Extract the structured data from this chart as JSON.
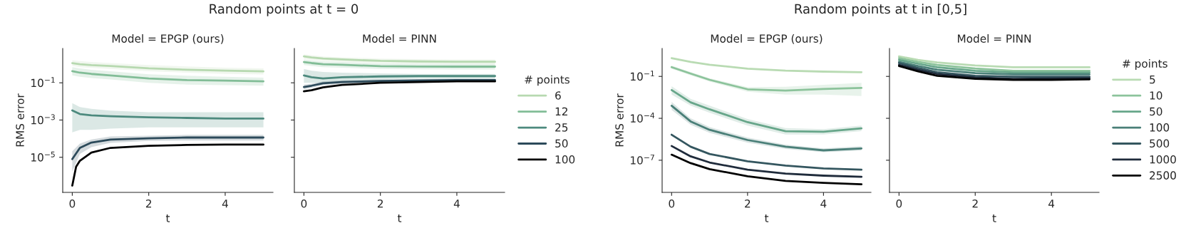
{
  "chart_data": [
    {
      "type": "line",
      "title": "Random points at t = 0",
      "subtitle": "Model = EPGP (ours)",
      "xlabel": "t",
      "ylabel": "RMS error",
      "log": "y",
      "grid": false,
      "legend": false,
      "xlim": [
        -0.25,
        5.25
      ],
      "xticks": [
        0,
        2,
        4
      ],
      "ylim": [
        1.3e-07,
        7
      ],
      "yticks": [
        {
          "value": 0.1,
          "label": "10$^{−1}$"
        },
        {
          "value": 0.001,
          "label": "10$^{−3}$"
        },
        {
          "value": 1e-05,
          "label": "10$^{−5}$"
        }
      ],
      "x": [
        0,
        0.2,
        0.5,
        1,
        2,
        3,
        4,
        5
      ],
      "series": [
        {
          "color": "#b7d9b0",
          "values": [
            1.14,
            1.0,
            0.9,
            0.8,
            0.6,
            0.5,
            0.45,
            0.41
          ],
          "lower": [
            0.8,
            0.7,
            0.63,
            0.56,
            0.42,
            0.35,
            0.3,
            0.28
          ],
          "upper": [
            1.65,
            1.45,
            1.3,
            1.15,
            0.9,
            0.75,
            0.65,
            0.6
          ]
        },
        {
          "color": "#82bd97",
          "values": [
            0.42,
            0.35,
            0.3,
            0.25,
            0.17,
            0.14,
            0.13,
            0.12
          ],
          "lower": [
            0.25,
            0.21,
            0.18,
            0.15,
            0.1,
            0.08,
            0.075,
            0.07
          ],
          "upper": [
            0.7,
            0.6,
            0.5,
            0.42,
            0.29,
            0.24,
            0.21,
            0.19
          ]
        },
        {
          "color": "#4d8a7e",
          "values": [
            0.0033,
            0.0021,
            0.0018,
            0.0016,
            0.0014,
            0.0013,
            0.0012,
            0.0012
          ],
          "lower": [
            0.00022,
            0.0003,
            0.0003,
            0.00035,
            0.0004,
            0.0004,
            0.0004,
            0.0004
          ],
          "upper": [
            0.008,
            0.005,
            0.004,
            0.0032,
            0.0026,
            0.0026,
            0.0026,
            0.0026
          ]
        },
        {
          "color": "#2c4a5a",
          "values": [
            8e-06,
            3.2e-05,
            6.2e-05,
            9e-05,
            0.000105,
            0.000115,
            0.000115,
            0.000115
          ],
          "lower": [
            1.7e-06,
            1.5e-05,
            3.5e-05,
            6e-05,
            7.5e-05,
            8e-05,
            8e-05,
            8e-05
          ],
          "upper": [
            2.1e-05,
            5.5e-05,
            9e-05,
            0.00013,
            0.000145,
            0.00016,
            0.00016,
            0.00016
          ]
        },
        {
          "color": "#000000",
          "x": [
            0,
            0.1,
            0.2,
            0.5,
            1,
            2,
            3,
            4,
            5
          ],
          "values": [
            3e-07,
            3.1e-06,
            6.5e-06,
            1.8e-05,
            3.2e-05,
            4.1e-05,
            4.6e-05,
            4.8e-05,
            4.8e-05
          ]
        }
      ]
    },
    {
      "type": "line",
      "subtitle": "Model = PINN",
      "xlabel": "t",
      "log": "y",
      "grid": false,
      "legend": "right",
      "legend_title": "# points",
      "tick_labels": "x",
      "xlim": [
        -0.25,
        5.25
      ],
      "xticks": [
        0,
        2,
        4
      ],
      "ylim": [
        1.3e-07,
        7
      ],
      "yticks": [
        {
          "value": 0.1,
          "label": null
        },
        {
          "value": 0.001,
          "label": null
        },
        {
          "value": 1e-05,
          "label": null
        }
      ],
      "x": [
        0,
        0.2,
        0.5,
        1,
        2,
        3,
        4,
        5
      ],
      "series": [
        {
          "name": "6",
          "color": "#b7d9b0",
          "values": [
            2.6,
            2.3,
            2.0,
            1.8,
            1.5,
            1.4,
            1.35,
            1.35
          ],
          "lower": [
            1.9,
            1.7,
            1.5,
            1.35,
            1.15,
            1.05,
            1.0,
            1.0
          ],
          "upper": [
            3.4,
            3.0,
            2.6,
            2.35,
            2.0,
            1.85,
            1.8,
            1.8
          ]
        },
        {
          "name": "12",
          "color": "#82bd97",
          "values": [
            1.3,
            1.15,
            1.0,
            0.93,
            0.78,
            0.75,
            0.74,
            0.74
          ],
          "lower": [
            0.9,
            0.8,
            0.7,
            0.65,
            0.55,
            0.53,
            0.52,
            0.52
          ],
          "upper": [
            1.8,
            1.6,
            1.4,
            1.3,
            1.1,
            1.05,
            1.05,
            1.05
          ]
        },
        {
          "name": "25",
          "color": "#4d8a7e",
          "values": [
            0.25,
            0.2,
            0.17,
            0.2,
            0.22,
            0.23,
            0.23,
            0.23
          ],
          "lower": [
            0.1,
            0.1,
            0.1,
            0.12,
            0.15,
            0.17,
            0.17,
            0.17
          ],
          "upper": [
            0.55,
            0.45,
            0.38,
            0.35,
            0.32,
            0.3,
            0.3,
            0.3
          ]
        },
        {
          "name": "50",
          "color": "#2c4a5a",
          "values": [
            0.06,
            0.07,
            0.095,
            0.11,
            0.125,
            0.135,
            0.14,
            0.14
          ],
          "lower": [
            0.045,
            0.055,
            0.075,
            0.09,
            0.105,
            0.115,
            0.12,
            0.12
          ],
          "upper": [
            0.08,
            0.09,
            0.12,
            0.135,
            0.15,
            0.16,
            0.165,
            0.165
          ]
        },
        {
          "name": "100",
          "color": "#000000",
          "values": [
            0.035,
            0.04,
            0.057,
            0.077,
            0.1,
            0.11,
            0.12,
            0.12
          ]
        }
      ]
    },
    {
      "type": "line",
      "title": "Random points at t in [0,5]",
      "subtitle": "Model = EPGP (ours)",
      "xlabel": "t",
      "ylabel": "RMS error",
      "log": "y",
      "grid": false,
      "legend": false,
      "xlim": [
        -0.25,
        5.25
      ],
      "xticks": [
        0,
        2,
        4
      ],
      "ylim": [
        5e-10,
        10
      ],
      "yticks": [
        {
          "value": 0.1,
          "label": "10$^{−1}$"
        },
        {
          "value": 0.0001,
          "label": "10$^{−4}$"
        },
        {
          "value": 1e-07,
          "label": "10$^{−7}$"
        }
      ],
      "x": [
        0,
        0.5,
        1,
        2,
        3,
        4,
        5
      ],
      "series": [
        {
          "color": "#b9dbb3",
          "values": [
            2.0,
            1.1,
            0.68,
            0.36,
            0.26,
            0.22,
            0.2
          ]
        },
        {
          "color": "#8cc39b",
          "values": [
            0.46,
            0.16,
            0.057,
            0.012,
            0.0096,
            0.0127,
            0.015
          ],
          "lower": [
            0.35,
            0.12,
            0.042,
            0.008,
            0.005,
            0.005,
            0.004
          ],
          "upper": [
            0.6,
            0.21,
            0.075,
            0.017,
            0.018,
            0.025,
            0.035
          ]
        },
        {
          "color": "#67a68a",
          "values": [
            0.0105,
            0.0014,
            0.00044,
            5.3e-05,
            1.2e-05,
            1.1e-05,
            1.9e-05
          ],
          "lower": [
            0.005,
            0.0008,
            0.00025,
            3e-05,
            7e-06,
            7e-06,
            1.2e-05
          ],
          "upper": [
            0.02,
            0.0025,
            0.0008,
            9e-05,
            2e-05,
            1.7e-05,
            3e-05
          ]
        },
        {
          "color": "#4a7f78",
          "values": [
            0.00079,
            6e-05,
            1.5e-05,
            2.8e-06,
            9.3e-07,
            5.1e-07,
            7e-07
          ],
          "lower": [
            0.0004,
            3.5e-05,
            9e-06,
            1.8e-06,
            6.5e-07,
            3.8e-07,
            5e-07
          ],
          "upper": [
            0.0015,
            0.0001,
            2.4e-05,
            4.2e-06,
            1.3e-06,
            7e-07,
            1e-06
          ]
        },
        {
          "color": "#34565f",
          "values": [
            6.7e-06,
            9.3e-07,
            2.8e-07,
            8.5e-08,
            4.2e-08,
            2.6e-08,
            2.1e-08
          ]
        },
        {
          "color": "#1f2b3b",
          "values": [
            1.05e-06,
            1.9e-07,
            6.9e-08,
            2.1e-08,
            1.1e-08,
            7.9e-09,
            6.5e-09
          ]
        },
        {
          "color": "#000000",
          "values": [
            2.5e-07,
            6.2e-08,
            2.3e-08,
            7.2e-09,
            3.3e-09,
            2.4e-09,
            1.9e-09
          ]
        }
      ]
    },
    {
      "type": "line",
      "subtitle": "Model = PINN",
      "xlabel": "t",
      "log": "y",
      "grid": false,
      "legend": "right",
      "legend_title": "# points",
      "tick_labels": "x",
      "xlim": [
        -0.25,
        5.25
      ],
      "xticks": [
        0,
        2,
        4
      ],
      "ylim": [
        5e-10,
        10
      ],
      "yticks": [
        {
          "value": 0.1,
          "label": null
        },
        {
          "value": 0.0001,
          "label": null
        },
        {
          "value": 1e-07,
          "label": null
        }
      ],
      "x": [
        0,
        0.5,
        1,
        2,
        3,
        4,
        5
      ],
      "series": [
        {
          "name": "5",
          "color": "#b9dbb3",
          "values": [
            2.7,
            1.5,
            1.0,
            0.6,
            0.45,
            0.45,
            0.45
          ]
        },
        {
          "name": "10",
          "color": "#8cc39b",
          "values": [
            2.0,
            1.1,
            0.67,
            0.37,
            0.25,
            0.25,
            0.25
          ]
        },
        {
          "name": "50",
          "color": "#67a68a",
          "values": [
            1.5,
            0.8,
            0.45,
            0.25,
            0.19,
            0.19,
            0.19
          ]
        },
        {
          "name": "100",
          "color": "#4a7f78",
          "values": [
            1.1,
            0.55,
            0.3,
            0.17,
            0.14,
            0.14,
            0.14
          ]
        },
        {
          "name": "500",
          "color": "#34565f",
          "values": [
            0.9,
            0.4,
            0.2,
            0.11,
            0.095,
            0.095,
            0.095
          ]
        },
        {
          "name": "1000",
          "color": "#1f2b3b",
          "values": [
            0.67,
            0.3,
            0.15,
            0.085,
            0.067,
            0.07,
            0.076
          ]
        },
        {
          "name": "2500",
          "color": "#000000",
          "values": [
            0.55,
            0.23,
            0.11,
            0.067,
            0.057,
            0.057,
            0.062
          ]
        }
      ]
    }
  ]
}
